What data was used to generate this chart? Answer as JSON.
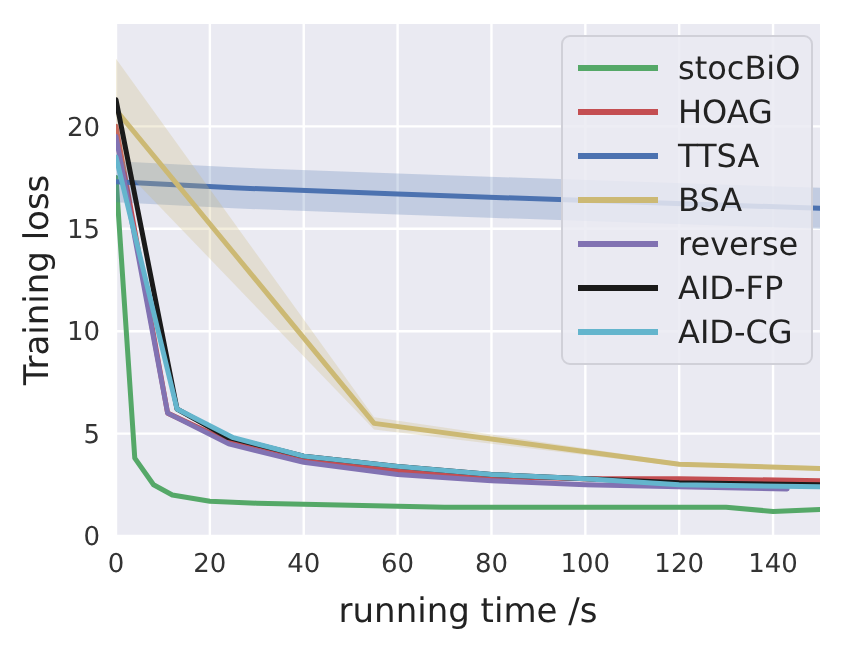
{
  "chart_data": {
    "type": "line",
    "xlabel": "running time /s",
    "ylabel": "Training loss",
    "xlim": [
      0,
      150
    ],
    "ylim": [
      0,
      25
    ],
    "xticks": [
      0,
      20,
      40,
      60,
      80,
      100,
      120,
      140
    ],
    "yticks": [
      0,
      5,
      10,
      15,
      20
    ],
    "grid": true,
    "legend": "top right",
    "series": [
      {
        "name": "stocBiO",
        "color": "#55a868",
        "x": [
          0,
          4,
          8,
          12,
          20,
          30,
          50,
          70,
          100,
          130,
          140,
          150
        ],
        "values": [
          17.5,
          3.8,
          2.5,
          2.0,
          1.7,
          1.6,
          1.5,
          1.4,
          1.4,
          1.4,
          1.2,
          1.3
        ]
      },
      {
        "name": "HOAG",
        "color": "#c44e52",
        "x": [
          0,
          11,
          24,
          40,
          60,
          80,
          100,
          120,
          150
        ],
        "values": [
          20,
          6.0,
          4.6,
          3.7,
          3.2,
          2.9,
          2.8,
          2.8,
          2.7
        ]
      },
      {
        "name": "TTSA",
        "color": "#4c72b0",
        "x": [
          0,
          25,
          60,
          85,
          150
        ],
        "values": [
          17.3,
          17.0,
          16.7,
          16.5,
          16.0
        ],
        "lower": [
          16.3,
          16.0,
          15.7,
          15.5,
          15.0
        ],
        "upper": [
          18.3,
          18.0,
          17.7,
          17.5,
          17.0
        ]
      },
      {
        "name": "BSA",
        "color": "#ccb974",
        "x": [
          0,
          55,
          120,
          150
        ],
        "values": [
          20.8,
          5.5,
          3.5,
          3.3
        ],
        "lower": [
          18.3,
          5.2,
          3.4,
          3.2
        ],
        "upper": [
          23.3,
          5.8,
          3.6,
          3.4
        ]
      },
      {
        "name": "reverse",
        "color": "#8172b2",
        "x": [
          0,
          11,
          24,
          40,
          60,
          80,
          100,
          120,
          143
        ],
        "values": [
          19.5,
          6.0,
          4.5,
          3.6,
          3.0,
          2.7,
          2.5,
          2.4,
          2.3
        ]
      },
      {
        "name": "AID-FP",
        "color": "#1a1a1a",
        "x": [
          0,
          13,
          24,
          40,
          60,
          80,
          100,
          120,
          150
        ],
        "values": [
          21.3,
          6.2,
          4.8,
          3.9,
          3.4,
          3.0,
          2.8,
          2.6,
          2.5
        ]
      },
      {
        "name": "AID-CG",
        "color": "#64b5cd",
        "x": [
          0,
          13,
          25,
          40,
          60,
          80,
          100,
          120,
          150
        ],
        "values": [
          18.5,
          6.2,
          4.8,
          3.9,
          3.4,
          3.0,
          2.8,
          2.5,
          2.4
        ]
      }
    ]
  }
}
